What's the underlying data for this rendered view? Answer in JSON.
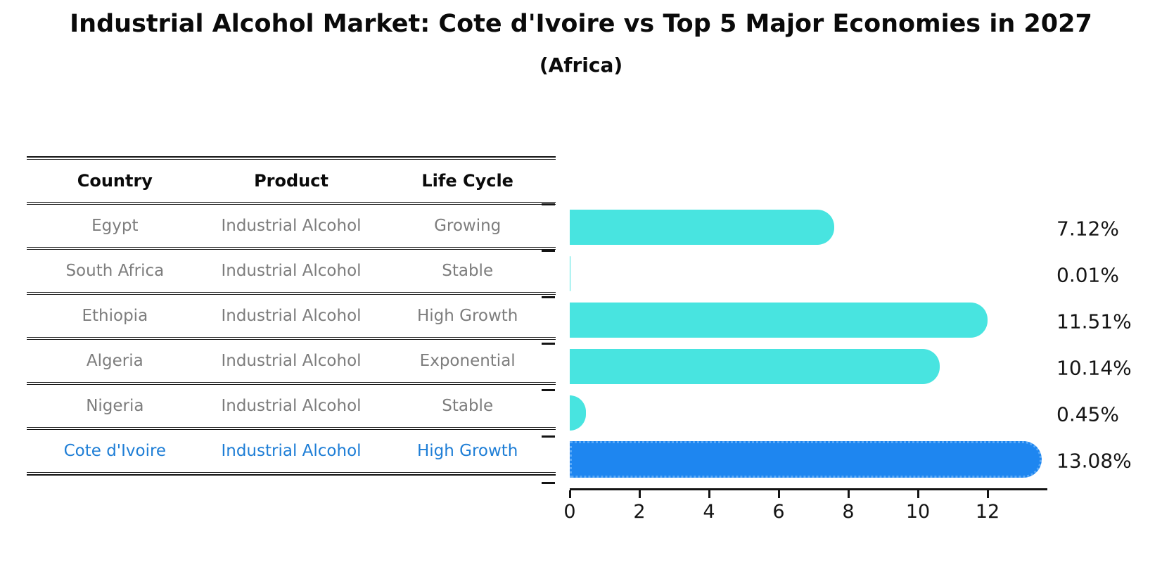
{
  "title": "Industrial Alcohol Market: Cote d'Ivoire vs Top 5 Major Economies in 2027",
  "subtitle": "(Africa)",
  "table": {
    "headers": [
      "Country",
      "Product",
      "Life Cycle"
    ],
    "rows": [
      {
        "country": "Egypt",
        "product": "Industrial Alcohol",
        "life_cycle": "Growing",
        "highlight": false
      },
      {
        "country": "South Africa",
        "product": "Industrial Alcohol",
        "life_cycle": "Stable",
        "highlight": false
      },
      {
        "country": "Ethiopia",
        "product": "Industrial Alcohol",
        "life_cycle": "High Growth",
        "highlight": false
      },
      {
        "country": "Algeria",
        "product": "Industrial Alcohol",
        "life_cycle": "Exponential",
        "highlight": false
      },
      {
        "country": "Nigeria",
        "product": "Industrial Alcohol",
        "life_cycle": "Stable",
        "highlight": false
      },
      {
        "country": "Cote d'Ivoire",
        "product": "Industrial Alcohol",
        "life_cycle": "High Growth",
        "highlight": true
      }
    ]
  },
  "chart_data": {
    "type": "bar",
    "orientation": "horizontal",
    "categories": [
      "Egypt",
      "South Africa",
      "Ethiopia",
      "Algeria",
      "Nigeria",
      "Cote d'Ivoire"
    ],
    "values": [
      7.12,
      0.01,
      11.51,
      10.14,
      0.45,
      13.08
    ],
    "value_labels": [
      "7.12%",
      "0.01%",
      "11.51%",
      "10.14%",
      "0.45%",
      "13.08%"
    ],
    "title": "Industrial Alcohol Market: Cote d'Ivoire vs Top 5 Major Economies in 2027",
    "xlabel": "",
    "ylabel": "",
    "xlim": [
      0,
      13.7
    ],
    "xticks": [
      0,
      2,
      4,
      6,
      8,
      10,
      12
    ],
    "grid": false,
    "legend": null,
    "highlight_index": 5,
    "bar_style": "rounded-right",
    "highlight_border": "dotted"
  },
  "colors": {
    "bar_default": "#48E4E0",
    "bar_highlight": "#1E86F0",
    "bar_highlight_dots": "#5AA9F7",
    "highlight_text": "#1e7ed6",
    "table_text": "#7d7d7d",
    "header_text": "#0a0a0a",
    "axis": "#141414"
  }
}
